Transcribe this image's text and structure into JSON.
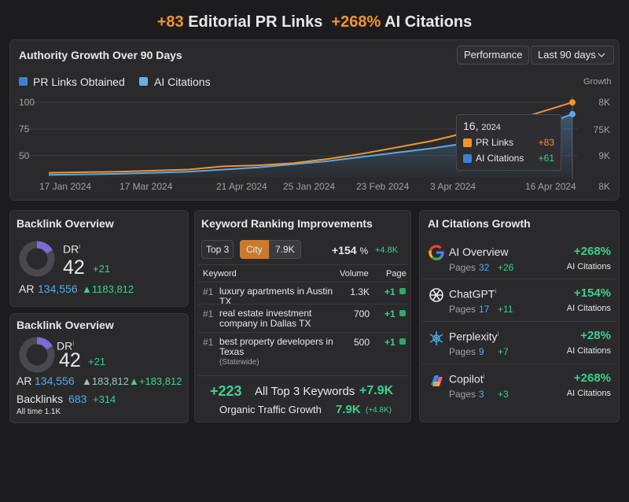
{
  "header": {
    "pr_value": "+83",
    "pr_label": "Editorial PR Links",
    "ai_value": "+268%",
    "ai_label": "AI Citations"
  },
  "chart_panel": {
    "title": "Authority Growth Over 90 Days",
    "buttons": [
      "Performance",
      "Last 90 days"
    ],
    "growth_label": "Growth",
    "tooltip": {
      "day": "16,",
      "year": "2024",
      "items": [
        {
          "label": "PR Links",
          "value": "+83"
        },
        {
          "label": "AI Citations",
          "value": "+61"
        }
      ]
    }
  },
  "chart_data": {
    "type": "line",
    "ylim": [
      30,
      106
    ],
    "yticks": [
      50,
      75,
      100
    ],
    "grid": true,
    "y2_labels": [
      "8K",
      "75K",
      "9K",
      "8K"
    ],
    "x_labels": [
      "17 Jan 2024",
      "17 Mar 2024",
      "21 Apr 2024",
      "25 Jan 2024",
      "23 Feb 2024",
      "3 Apr 2024",
      "16 Apr 2024"
    ],
    "series": [
      {
        "name": "PR Links Obtained",
        "color": "#f0952e",
        "values": [
          34,
          34.5,
          35,
          36,
          37,
          40,
          41,
          43,
          47,
          52,
          58,
          64,
          72,
          80,
          90,
          100
        ]
      },
      {
        "name": "AI Citations",
        "color": "#5aa9e6",
        "values": [
          32,
          32.5,
          33,
          34,
          35,
          37,
          39,
          42,
          45,
          49,
          53,
          57,
          62,
          68,
          77,
          89
        ]
      }
    ]
  },
  "backlink_1": {
    "title": "Backlink Overview",
    "dr_label": "DR",
    "info": "i",
    "dr_value": "42",
    "dr_change": "+21",
    "ar_label": "AR",
    "ar_value": "134,556",
    "ar_change": "1183,812"
  },
  "backlink_2": {
    "title": "Backlink Overview",
    "dr_label": "DR",
    "info": "i",
    "dr_value": "42",
    "dr_change": "+21",
    "ar_label": "AR",
    "ar_value": "134,556",
    "ar_change": "183,812",
    "ar_change_2": "+183,812",
    "backlinks_label": "Backlinks",
    "backlinks_value": "683",
    "backlinks_change": "+314",
    "all_time_label": "All time",
    "all_time_value": "1.1K"
  },
  "keywords": {
    "title": "Keyword Ranking Improvements",
    "tabs": [
      "Top 3",
      "City",
      "7.9K"
    ],
    "change": "+154",
    "change_unit": "%",
    "change_sub": "+4.8K",
    "columns": [
      "Keyword",
      "Volume",
      "Page"
    ],
    "rows": [
      {
        "rank": "#1",
        "keyword": "luxury apartments in Austin TX",
        "volume": "1.3K",
        "page": "+1"
      },
      {
        "rank": "#1",
        "keyword": "real estate investment company in Dallas TX",
        "volume": "700",
        "page": "+1"
      },
      {
        "rank": "#1",
        "keyword": "best property developers in Texas",
        "note": "(Statewide)",
        "volume": "500",
        "page": "+1"
      }
    ],
    "footer": {
      "count": "+223",
      "label": "All Top 3 Keywords",
      "total": "+7.9K",
      "traffic_label": "Organic Traffic Growth",
      "traffic_value": "7.9K",
      "traffic_change": "(+4.8K)"
    }
  },
  "ai_growth": {
    "title": "AI Citations Growth",
    "rows": [
      {
        "name": "AI Overview",
        "pages_label": "Pages",
        "pages": "32",
        "pages_change": "+26",
        "growth": "+268%",
        "growth_label": "AI Citations"
      },
      {
        "name": "ChatGPT",
        "info": "i",
        "pages_label": "Pages",
        "pages": "17",
        "pages_change": "+11",
        "growth": "+154%",
        "growth_label": "AI Citations"
      },
      {
        "name": "Perplexity",
        "info": "i",
        "pages_label": "Pages",
        "pages": "9",
        "pages_change": "+7",
        "growth": "+28%",
        "growth_label": "AI Citations"
      },
      {
        "name": "Copilot",
        "info": "i",
        "pages_label": "Pages",
        "pages": "3",
        "pages_change": "+3",
        "growth": "+268%",
        "growth_label": "AI Citations"
      }
    ]
  }
}
